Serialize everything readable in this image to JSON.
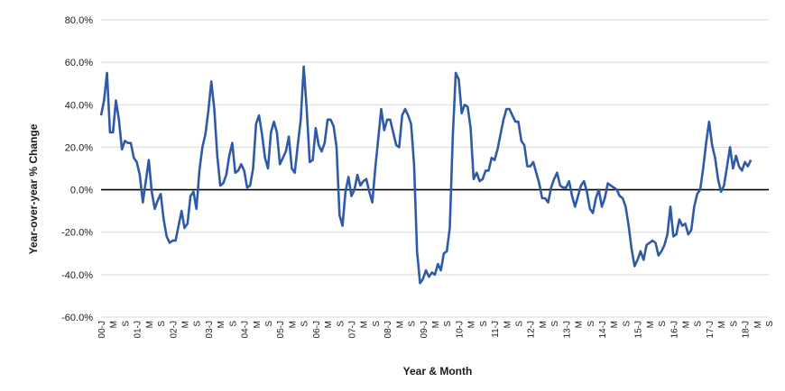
{
  "chart_data": {
    "type": "line",
    "title": "",
    "xlabel": "Year & Month",
    "ylabel": "Year-over-year % Change",
    "ylim": [
      -60,
      80
    ],
    "y_ticks": [
      -60,
      -40,
      -20,
      0,
      20,
      40,
      60,
      80
    ],
    "y_tick_labels": [
      "-60.0%",
      "-40.0%",
      "-20.0%",
      "0.0%",
      "20.0%",
      "40.0%",
      "60.0%",
      "80.0%"
    ],
    "grid": "horizontal",
    "legend": "none",
    "x_range": [
      "2000-01",
      "2018-09"
    ],
    "x_tick_labels": [
      "00-J",
      "M",
      "S",
      "01-J",
      "M",
      "S",
      "02-J",
      "M",
      "S",
      "03-J",
      "M",
      "S",
      "04-J",
      "M",
      "S",
      "05-J",
      "M",
      "S",
      "06-J",
      "M",
      "S",
      "07-J",
      "M",
      "S",
      "08-J",
      "M",
      "S",
      "09-J",
      "M",
      "S",
      "10-J",
      "M",
      "S",
      "11-J",
      "M",
      "S",
      "12-J",
      "M",
      "S",
      "13-J",
      "M",
      "S",
      "14-J",
      "M",
      "S",
      "15-J",
      "M",
      "S",
      "16-J",
      "M",
      "S",
      "17-J",
      "M",
      "S",
      "18-J",
      "M",
      "S"
    ],
    "series": [
      {
        "color": "#2e5aa8",
        "points": [
          [
            "2000-01",
            35
          ],
          [
            "2000-02",
            42
          ],
          [
            "2000-03",
            55
          ],
          [
            "2000-04",
            27
          ],
          [
            "2000-05",
            27
          ],
          [
            "2000-06",
            42
          ],
          [
            "2000-07",
            33
          ],
          [
            "2000-08",
            19
          ],
          [
            "2000-09",
            23
          ],
          [
            "2000-10",
            22
          ],
          [
            "2000-11",
            22
          ],
          [
            "2000-12",
            15
          ],
          [
            "2001-01",
            13
          ],
          [
            "2001-02",
            7
          ],
          [
            "2001-03",
            -6
          ],
          [
            "2001-04",
            4
          ],
          [
            "2001-05",
            14
          ],
          [
            "2001-06",
            -1
          ],
          [
            "2001-07",
            -9
          ],
          [
            "2001-08",
            -5
          ],
          [
            "2001-09",
            -2
          ],
          [
            "2001-10",
            -14
          ],
          [
            "2001-11",
            -22
          ],
          [
            "2001-12",
            -25
          ],
          [
            "2002-01",
            -24
          ],
          [
            "2002-02",
            -24
          ],
          [
            "2002-03",
            -17
          ],
          [
            "2002-04",
            -10
          ],
          [
            "2002-05",
            -18
          ],
          [
            "2002-06",
            -16
          ],
          [
            "2002-07",
            -3
          ],
          [
            "2002-08",
            -1
          ],
          [
            "2002-09",
            -9
          ],
          [
            "2002-10",
            9
          ],
          [
            "2002-11",
            20
          ],
          [
            "2002-12",
            26
          ],
          [
            "2003-01",
            37
          ],
          [
            "2003-02",
            51
          ],
          [
            "2003-03",
            38
          ],
          [
            "2003-04",
            16
          ],
          [
            "2003-05",
            2
          ],
          [
            "2003-06",
            3
          ],
          [
            "2003-07",
            7
          ],
          [
            "2003-08",
            16
          ],
          [
            "2003-09",
            22
          ],
          [
            "2003-10",
            8
          ],
          [
            "2003-11",
            9
          ],
          [
            "2003-12",
            12
          ],
          [
            "2004-01",
            9
          ],
          [
            "2004-02",
            1
          ],
          [
            "2004-03",
            2
          ],
          [
            "2004-04",
            10
          ],
          [
            "2004-05",
            31
          ],
          [
            "2004-06",
            35
          ],
          [
            "2004-07",
            26
          ],
          [
            "2004-08",
            15
          ],
          [
            "2004-09",
            10
          ],
          [
            "2004-10",
            27
          ],
          [
            "2004-11",
            32
          ],
          [
            "2004-12",
            27
          ],
          [
            "2005-01",
            12
          ],
          [
            "2005-02",
            15
          ],
          [
            "2005-03",
            18
          ],
          [
            "2005-04",
            25
          ],
          [
            "2005-05",
            10
          ],
          [
            "2005-06",
            8
          ],
          [
            "2005-07",
            21
          ],
          [
            "2005-08",
            33
          ],
          [
            "2005-09",
            58
          ],
          [
            "2005-10",
            38
          ],
          [
            "2005-11",
            13
          ],
          [
            "2005-12",
            14
          ],
          [
            "2006-01",
            29
          ],
          [
            "2006-02",
            21
          ],
          [
            "2006-03",
            18
          ],
          [
            "2006-04",
            22
          ],
          [
            "2006-05",
            33
          ],
          [
            "2006-06",
            33
          ],
          [
            "2006-07",
            30
          ],
          [
            "2006-08",
            20
          ],
          [
            "2006-09",
            -12
          ],
          [
            "2006-10",
            -17
          ],
          [
            "2006-11",
            -1
          ],
          [
            "2006-12",
            6
          ],
          [
            "2007-01",
            -3
          ],
          [
            "2007-02",
            0
          ],
          [
            "2007-03",
            7
          ],
          [
            "2007-04",
            2
          ],
          [
            "2007-05",
            4
          ],
          [
            "2007-06",
            5
          ],
          [
            "2007-07",
            -1
          ],
          [
            "2007-08",
            -6
          ],
          [
            "2007-09",
            10
          ],
          [
            "2007-10",
            24
          ],
          [
            "2007-11",
            38
          ],
          [
            "2007-12",
            28
          ],
          [
            "2008-01",
            33
          ],
          [
            "2008-02",
            33
          ],
          [
            "2008-03",
            27
          ],
          [
            "2008-04",
            21
          ],
          [
            "2008-05",
            20
          ],
          [
            "2008-06",
            35
          ],
          [
            "2008-07",
            38
          ],
          [
            "2008-08",
            35
          ],
          [
            "2008-09",
            31
          ],
          [
            "2008-10",
            12
          ],
          [
            "2008-11",
            -29
          ],
          [
            "2008-12",
            -44
          ],
          [
            "2009-01",
            -42
          ],
          [
            "2009-02",
            -38
          ],
          [
            "2009-03",
            -41
          ],
          [
            "2009-04",
            -39
          ],
          [
            "2009-05",
            -40
          ],
          [
            "2009-06",
            -35
          ],
          [
            "2009-07",
            -38
          ],
          [
            "2009-08",
            -30
          ],
          [
            "2009-09",
            -29
          ],
          [
            "2009-10",
            -18
          ],
          [
            "2009-11",
            25
          ],
          [
            "2009-12",
            55
          ],
          [
            "2010-01",
            52
          ],
          [
            "2010-02",
            36
          ],
          [
            "2010-03",
            40
          ],
          [
            "2010-04",
            39
          ],
          [
            "2010-05",
            29
          ],
          [
            "2010-06",
            5
          ],
          [
            "2010-07",
            8
          ],
          [
            "2010-08",
            4
          ],
          [
            "2010-09",
            5
          ],
          [
            "2010-10",
            9
          ],
          [
            "2010-11",
            9
          ],
          [
            "2010-12",
            15
          ],
          [
            "2011-01",
            14
          ],
          [
            "2011-02",
            19
          ],
          [
            "2011-03",
            26
          ],
          [
            "2011-04",
            33
          ],
          [
            "2011-05",
            38
          ],
          [
            "2011-06",
            38
          ],
          [
            "2011-07",
            35
          ],
          [
            "2011-08",
            32
          ],
          [
            "2011-09",
            32
          ],
          [
            "2011-10",
            23
          ],
          [
            "2011-11",
            21
          ],
          [
            "2011-12",
            11
          ],
          [
            "2012-01",
            11
          ],
          [
            "2012-02",
            13
          ],
          [
            "2012-03",
            8
          ],
          [
            "2012-04",
            3
          ],
          [
            "2012-05",
            -4
          ],
          [
            "2012-06",
            -4
          ],
          [
            "2012-07",
            -6
          ],
          [
            "2012-08",
            1
          ],
          [
            "2012-09",
            5
          ],
          [
            "2012-10",
            8
          ],
          [
            "2012-11",
            2
          ],
          [
            "2012-12",
            1
          ],
          [
            "2013-01",
            1
          ],
          [
            "2013-02",
            4
          ],
          [
            "2013-03",
            -3
          ],
          [
            "2013-04",
            -8
          ],
          [
            "2013-05",
            -3
          ],
          [
            "2013-06",
            2
          ],
          [
            "2013-07",
            4
          ],
          [
            "2013-08",
            -1
          ],
          [
            "2013-09",
            -9
          ],
          [
            "2013-10",
            -11
          ],
          [
            "2013-11",
            -4
          ],
          [
            "2013-12",
            0
          ],
          [
            "2014-01",
            -8
          ],
          [
            "2014-02",
            -4
          ],
          [
            "2014-03",
            3
          ],
          [
            "2014-04",
            2
          ],
          [
            "2014-05",
            1
          ],
          [
            "2014-06",
            0
          ],
          [
            "2014-07",
            -3
          ],
          [
            "2014-08",
            -4
          ],
          [
            "2014-09",
            -8
          ],
          [
            "2014-10",
            -17
          ],
          [
            "2014-11",
            -28
          ],
          [
            "2014-12",
            -36
          ],
          [
            "2015-01",
            -33
          ],
          [
            "2015-02",
            -29
          ],
          [
            "2015-03",
            -33
          ],
          [
            "2015-04",
            -26
          ],
          [
            "2015-05",
            -25
          ],
          [
            "2015-06",
            -24
          ],
          [
            "2015-07",
            -25
          ],
          [
            "2015-08",
            -31
          ],
          [
            "2015-09",
            -29
          ],
          [
            "2015-10",
            -26
          ],
          [
            "2015-11",
            -21
          ],
          [
            "2015-12",
            -8
          ],
          [
            "2016-01",
            -22
          ],
          [
            "2016-02",
            -21
          ],
          [
            "2016-03",
            -14
          ],
          [
            "2016-04",
            -17
          ],
          [
            "2016-05",
            -16
          ],
          [
            "2016-06",
            -21
          ],
          [
            "2016-07",
            -19
          ],
          [
            "2016-08",
            -8
          ],
          [
            "2016-09",
            -2
          ],
          [
            "2016-10",
            0
          ],
          [
            "2016-11",
            10
          ],
          [
            "2016-12",
            22
          ],
          [
            "2017-01",
            32
          ],
          [
            "2017-02",
            21
          ],
          [
            "2017-03",
            15
          ],
          [
            "2017-04",
            5
          ],
          [
            "2017-05",
            -1
          ],
          [
            "2017-06",
            2
          ],
          [
            "2017-07",
            11
          ],
          [
            "2017-08",
            20
          ],
          [
            "2017-09",
            10
          ],
          [
            "2017-10",
            16
          ],
          [
            "2017-11",
            11
          ],
          [
            "2017-12",
            9
          ],
          [
            "2018-01",
            13
          ],
          [
            "2018-02",
            11
          ],
          [
            "2018-03",
            14
          ]
        ]
      }
    ]
  }
}
